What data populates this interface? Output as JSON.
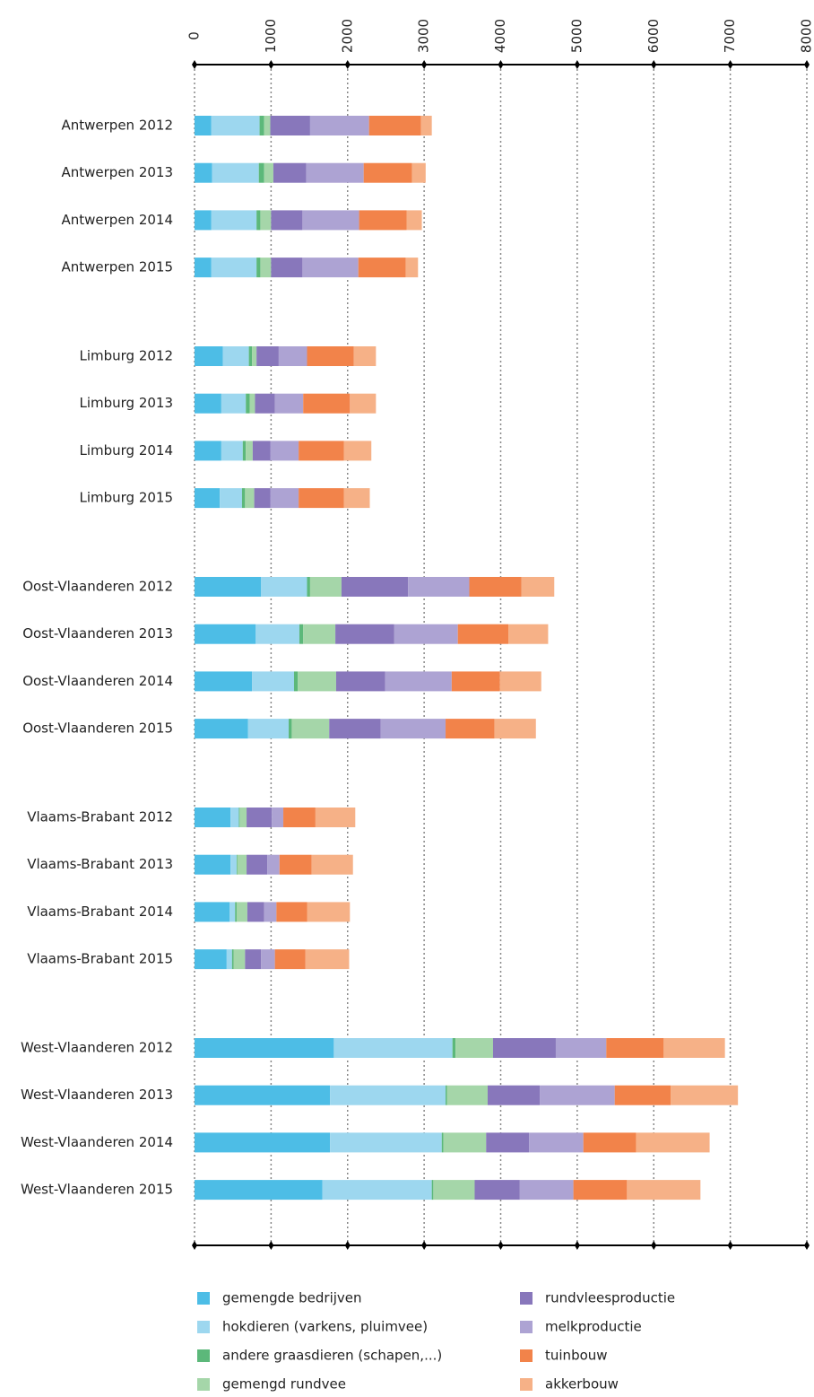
{
  "chart_data": {
    "type": "stacked_barh",
    "categories": [
      "Antwerpen 2012",
      "Antwerpen 2013",
      "Antwerpen 2014",
      "Antwerpen 2015",
      "Limburg 2012",
      "Limburg 2013",
      "Limburg 2014",
      "Limburg 2015",
      "Oost-Vlaanderen 2012",
      "Oost-Vlaanderen 2013",
      "Oost-Vlaanderen 2014",
      "Oost-Vlaanderen 2015",
      "Vlaams-Brabant 2012",
      "Vlaams-Brabant 2013",
      "Vlaams-Brabant 2014",
      "Vlaams-Brabant 2015",
      "West-Vlaanderen 2012",
      "West-Vlaanderen 2013",
      "West-Vlaanderen 2014",
      "West-Vlaanderen 2015"
    ],
    "series": [
      {
        "name": "gemengde bedrijven",
        "color": "#4dbde6",
        "values": [
          220,
          230,
          220,
          220,
          370,
          350,
          350,
          330,
          870,
          800,
          750,
          700,
          470,
          470,
          460,
          420,
          1820,
          1770,
          1770,
          1670
        ]
      },
      {
        "name": "hokdieren (varkens, pluimvee)",
        "color": "#9dd7ef",
        "values": [
          630,
          610,
          590,
          590,
          340,
          320,
          280,
          290,
          600,
          570,
          550,
          530,
          110,
          80,
          70,
          70,
          1550,
          1510,
          1460,
          1430
        ]
      },
      {
        "name": "andere graasdieren (schapen,...)",
        "color": "#5cb87a",
        "values": [
          60,
          70,
          50,
          50,
          40,
          50,
          40,
          40,
          40,
          50,
          50,
          40,
          10,
          10,
          20,
          20,
          40,
          20,
          20,
          20
        ]
      },
      {
        "name": "gemengd rundvee",
        "color": "#a5d6a9",
        "values": [
          80,
          120,
          140,
          140,
          60,
          70,
          90,
          120,
          410,
          420,
          500,
          490,
          90,
          120,
          140,
          150,
          490,
          530,
          560,
          540
        ]
      },
      {
        "name": "rundvleesproductie",
        "color": "#8877bb",
        "values": [
          520,
          430,
          410,
          410,
          290,
          260,
          230,
          210,
          870,
          770,
          640,
          670,
          330,
          270,
          220,
          210,
          820,
          680,
          560,
          590
        ]
      },
      {
        "name": "melkproductie",
        "color": "#ada3d3",
        "values": [
          770,
          750,
          740,
          730,
          370,
          370,
          370,
          370,
          800,
          830,
          870,
          850,
          150,
          160,
          160,
          180,
          660,
          980,
          710,
          700
        ]
      },
      {
        "name": "tuinbouw",
        "color": "#f2834a",
        "values": [
          680,
          630,
          620,
          620,
          610,
          610,
          590,
          590,
          680,
          660,
          630,
          640,
          420,
          420,
          400,
          400,
          750,
          730,
          690,
          700
        ]
      },
      {
        "name": "akkerbouw",
        "color": "#f6b187",
        "values": [
          140,
          180,
          200,
          160,
          290,
          340,
          360,
          340,
          430,
          520,
          540,
          540,
          520,
          540,
          560,
          570,
          800,
          880,
          960,
          960
        ]
      }
    ],
    "xlim": [
      0,
      8000
    ],
    "xticks": [
      0,
      1000,
      2000,
      3000,
      4000,
      5000,
      6000,
      7000,
      8000
    ],
    "grid": true
  }
}
